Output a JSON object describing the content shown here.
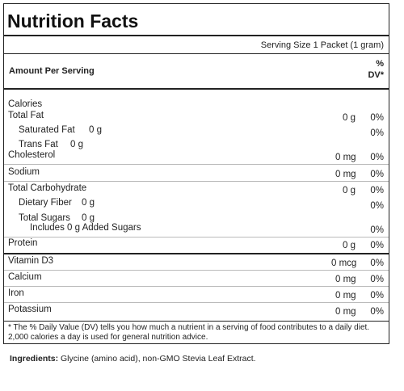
{
  "title": "Nutrition Facts",
  "serving_size": "Serving Size 1 Packet (1 gram)",
  "amount_per_serving": "Amount Per Serving",
  "dv_header_line1": "%",
  "dv_header_line2": "DV*",
  "calories_label": "Calories",
  "rows": [
    {
      "label": "Total Fat",
      "amount": "0 g",
      "dv": "0%"
    },
    {
      "label": "Saturated Fat",
      "amount": "0 g",
      "dv": "0%"
    },
    {
      "label": "Trans Fat",
      "amount": "0 g"
    },
    {
      "label": "Cholesterol",
      "amount": "0 mg",
      "dv": "0%"
    },
    {
      "label": "Sodium",
      "amount": "0 mg",
      "dv": "0%"
    },
    {
      "label": "Total Carbohydrate",
      "amount": "0 g",
      "dv": "0%"
    },
    {
      "label": "Dietary Fiber",
      "amount": "0 g",
      "dv": "0%"
    },
    {
      "label": "Total Sugars",
      "amount": "0 g"
    },
    {
      "label": "Includes 0 g Added Sugars",
      "dv": "0%"
    },
    {
      "label": "Protein",
      "amount": "0 g",
      "dv": "0%"
    }
  ],
  "vitamins": [
    {
      "label": "Vitamin D3",
      "amount": "0 mcg",
      "dv": "0%"
    },
    {
      "label": "Calcium",
      "amount": "0 mg",
      "dv": "0%"
    },
    {
      "label": "Iron",
      "amount": "0 mg",
      "dv": "0%"
    },
    {
      "label": "Potassium",
      "amount": "0 mg",
      "dv": "0%"
    }
  ],
  "footnote": "* The % Daily Value (DV) tells you how much a nutrient in a serving of food contributes to a daily diet. 2,000 calories a day is used for general nutrition advice.",
  "ingredients_label": "Ingredients:",
  "ingredients_text": " Glycine (amino acid), non-GMO Stevia Leaf Extract."
}
